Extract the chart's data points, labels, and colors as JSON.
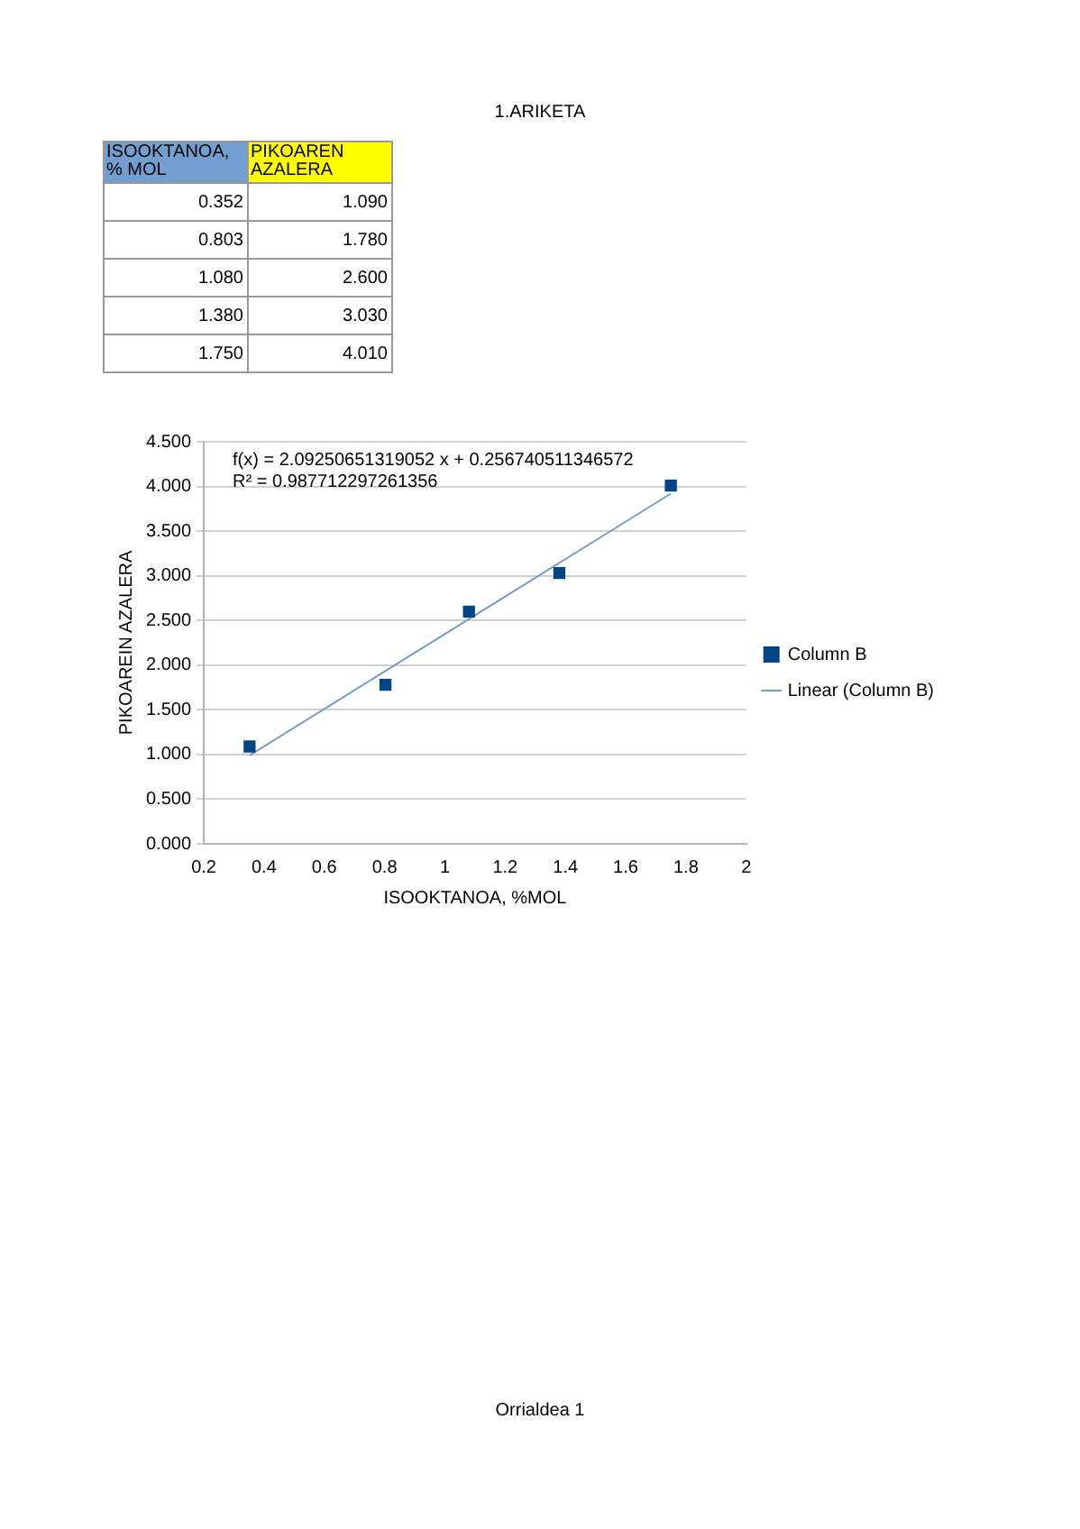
{
  "chart_data": {
    "type": "scatter",
    "title": "1.ARIKETA",
    "xlabel": "ISOOKTANOA, %MOL",
    "ylabel": "PIKOAREIN AZALERA",
    "series": [
      {
        "name": "Column B",
        "color": "#004586",
        "marker": "square",
        "x": [
          0.352,
          0.803,
          1.08,
          1.38,
          1.75
        ],
        "values": [
          1.09,
          1.78,
          2.6,
          3.03,
          4.01
        ]
      },
      {
        "name": "Linear (Column B)",
        "type": "line",
        "marker": "none",
        "color": "#729fcf",
        "x": [
          0.352,
          1.75
        ],
        "values": [
          0.99,
          3.92
        ]
      }
    ],
    "xlim": [
      0.2,
      2
    ],
    "xticks": [
      0.2,
      0.4,
      0.6,
      0.8,
      1,
      1.2,
      1.4,
      1.6,
      1.8,
      2
    ],
    "ylim": [
      0,
      4.5
    ],
    "yticks": [
      {
        "value": 0,
        "label": "0.000"
      },
      {
        "value": 0.5,
        "label": "0.500"
      },
      {
        "value": 1,
        "label": "1.000"
      },
      {
        "value": 1.5,
        "label": "1.500"
      },
      {
        "value": 2,
        "label": "2.000"
      },
      {
        "value": 2.5,
        "label": "2.500"
      },
      {
        "value": 3,
        "label": "3.000"
      },
      {
        "value": 3.5,
        "label": "3.500"
      },
      {
        "value": 4,
        "label": "4.000"
      },
      {
        "value": 4.5,
        "label": "4.500"
      }
    ],
    "grid": "y",
    "legend": "right",
    "annotations": [
      "ISOOKTANOA, % MOL",
      "PIKOAREN AZALERA",
      "0.352",
      "1.090",
      "0.803",
      "1.780",
      "1.080",
      "2.600",
      "1.380",
      "3.030",
      "1.750",
      "4.010",
      "f(x) = 2.09250651319052 x + 0.256740511346572",
      "R² = 0.987712297261356",
      "Orrialdea 1"
    ]
  }
}
